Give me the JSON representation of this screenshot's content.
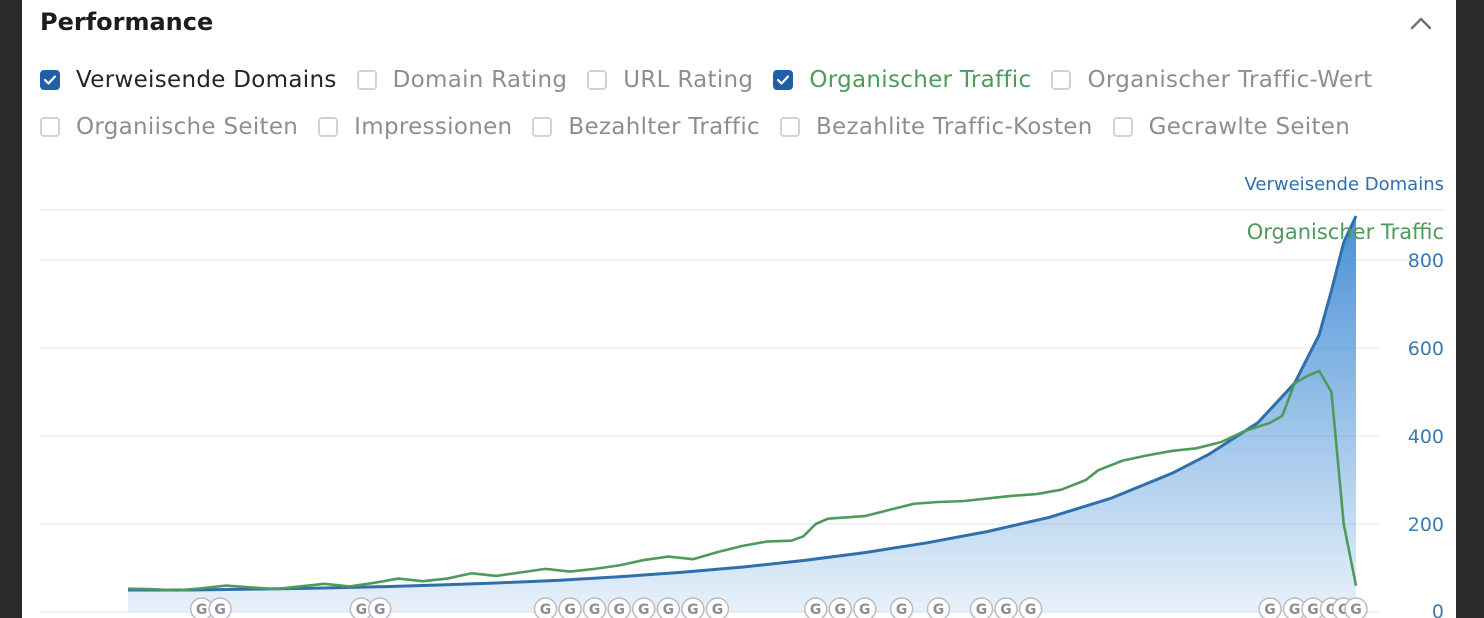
{
  "panel": {
    "title": "Performance",
    "collapse_icon": "chevron-up-icon"
  },
  "metrics": {
    "row1": [
      {
        "label": "Verweisende Domains",
        "checked": true,
        "tone": "blue"
      },
      {
        "label": "Domain Rating",
        "checked": false,
        "tone": "gray"
      },
      {
        "label": "URL Rating",
        "checked": false,
        "tone": "gray"
      },
      {
        "label": "Organischer Traffic",
        "checked": true,
        "tone": "green"
      },
      {
        "label": "Organischer Traffic-Wert",
        "checked": false,
        "tone": "gray"
      }
    ],
    "row2": [
      {
        "label": "Organiische Seiten",
        "checked": false,
        "tone": "gray"
      },
      {
        "label": "Impressionen",
        "checked": false,
        "tone": "gray"
      },
      {
        "label": "Bezahlter Traffic",
        "checked": false,
        "tone": "gray"
      },
      {
        "label": "Bezahlite Traffic-Kosten",
        "checked": false,
        "tone": "gray"
      },
      {
        "label": "Gecrawlte Seiten",
        "checked": false,
        "tone": "gray"
      }
    ]
  },
  "chart_data": {
    "type": "area",
    "title": "",
    "legend": {
      "placement": "top-right",
      "series_labels": [
        "Verweisende Domains",
        "Organischer Traffic"
      ]
    },
    "y_axis": {
      "ticks": [
        0,
        200,
        400,
        600,
        800
      ],
      "tick_labels": [
        "0",
        "200",
        "400",
        "600",
        "800"
      ],
      "range": [
        0,
        910
      ]
    },
    "x_range": [
      0,
      100
    ],
    "grid": true,
    "colors": {
      "referring_domains": "#2f6fab",
      "area_top": "#3f8bd4",
      "organic_traffic": "#4e9a5b",
      "grid": "#e3e6ea",
      "axis_text": "#3c7bb0"
    },
    "series": [
      {
        "name": "Verweisende Domains",
        "kind": "area",
        "points": [
          [
            0,
            50
          ],
          [
            5,
            50
          ],
          [
            10,
            52
          ],
          [
            15,
            54
          ],
          [
            20,
            57
          ],
          [
            25,
            61
          ],
          [
            30,
            66
          ],
          [
            35,
            72
          ],
          [
            40,
            80
          ],
          [
            45,
            90
          ],
          [
            50,
            102
          ],
          [
            55,
            117
          ],
          [
            60,
            135
          ],
          [
            65,
            157
          ],
          [
            70,
            183
          ],
          [
            75,
            215
          ],
          [
            80,
            258
          ],
          [
            85,
            315
          ],
          [
            88,
            358
          ],
          [
            92,
            430
          ],
          [
            95,
            520
          ],
          [
            97,
            630
          ],
          [
            98,
            730
          ],
          [
            99,
            840
          ],
          [
            100,
            900
          ]
        ]
      },
      {
        "name": "Organischer Traffic",
        "kind": "line",
        "points": [
          [
            0,
            53
          ],
          [
            2,
            52
          ],
          [
            4,
            49
          ],
          [
            6,
            54
          ],
          [
            8,
            60
          ],
          [
            10,
            56
          ],
          [
            12,
            52
          ],
          [
            14,
            58
          ],
          [
            16,
            64
          ],
          [
            18,
            58
          ],
          [
            20,
            66
          ],
          [
            22,
            76
          ],
          [
            24,
            70
          ],
          [
            26,
            76
          ],
          [
            28,
            88
          ],
          [
            30,
            82
          ],
          [
            32,
            90
          ],
          [
            34,
            98
          ],
          [
            36,
            92
          ],
          [
            38,
            98
          ],
          [
            40,
            106
          ],
          [
            42,
            118
          ],
          [
            44,
            126
          ],
          [
            46,
            120
          ],
          [
            48,
            136
          ],
          [
            50,
            150
          ],
          [
            52,
            160
          ],
          [
            54,
            162
          ],
          [
            55,
            172
          ],
          [
            56,
            200
          ],
          [
            57,
            212
          ],
          [
            58,
            214
          ],
          [
            60,
            218
          ],
          [
            62,
            232
          ],
          [
            64,
            246
          ],
          [
            66,
            250
          ],
          [
            68,
            252
          ],
          [
            70,
            258
          ],
          [
            72,
            264
          ],
          [
            74,
            268
          ],
          [
            76,
            278
          ],
          [
            78,
            300
          ],
          [
            79,
            322
          ],
          [
            81,
            344
          ],
          [
            83,
            356
          ],
          [
            85,
            366
          ],
          [
            87,
            372
          ],
          [
            89,
            386
          ],
          [
            91,
            412
          ],
          [
            93,
            430
          ],
          [
            94,
            446
          ],
          [
            95,
            520
          ],
          [
            96,
            536
          ],
          [
            97,
            548
          ],
          [
            98,
            500
          ],
          [
            99,
            200
          ],
          [
            100,
            60
          ]
        ]
      }
    ],
    "google_update_markers": [
      6,
      7.5,
      19,
      20.5,
      34,
      36,
      38,
      40,
      42,
      44,
      46,
      48,
      56,
      58,
      60,
      63,
      66,
      69.5,
      71.5,
      73.5,
      93,
      95,
      96.5,
      98,
      99,
      100
    ]
  }
}
